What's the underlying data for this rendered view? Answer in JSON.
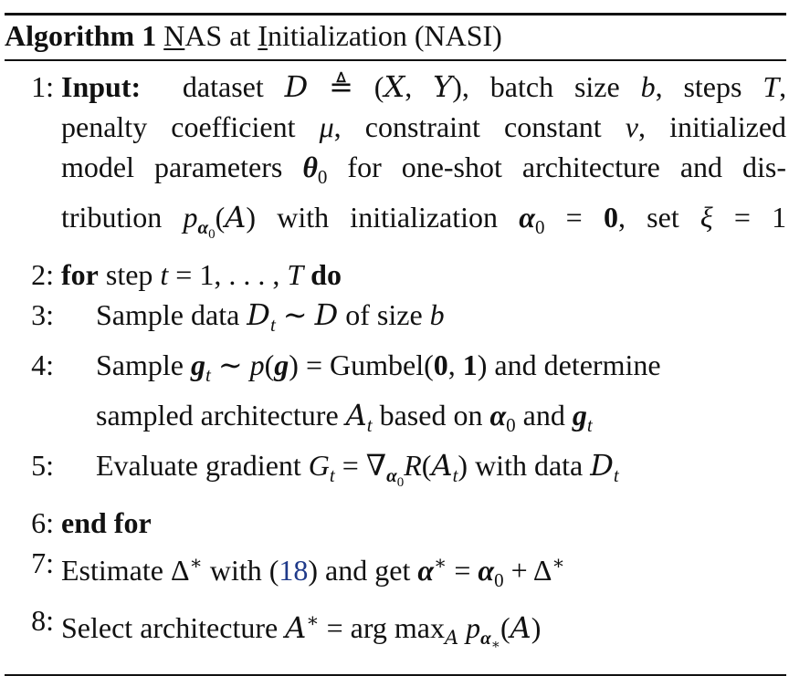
{
  "caption": {
    "label": "Algorithm 1",
    "title_n": "N",
    "title_as": "AS",
    "title_at": " at ",
    "title_i": "I",
    "title_nit": "nitialization",
    "title_abbr": " (NASI)"
  },
  "lines": {
    "l1": {
      "num": "1:",
      "keyword": "Input:",
      "t1": "dataset",
      "t2": "batch size",
      "t3": "steps",
      "t4": "penalty coefficient",
      "t5": "constraint constant",
      "t6": "initialized",
      "t7": "model parameters",
      "t8": "for one-shot architecture and dis-",
      "t9": "tribution",
      "t10": "with initialization",
      "t11": "set"
    },
    "l2": {
      "num": "2:",
      "keyword_for": "for",
      "text": "step",
      "keyword_do": "do"
    },
    "l3": {
      "num": "3:",
      "t1": "Sample data",
      "t2": "of size"
    },
    "l4": {
      "num": "4:",
      "t1": "Sample",
      "t2": "Gumbel",
      "t3": "and determine",
      "t4": "sampled architecture",
      "t5": "based on",
      "t6": "and"
    },
    "l5": {
      "num": "5:",
      "t1": "Evaluate gradient",
      "t2": "with data"
    },
    "l6": {
      "num": "6:",
      "keyword": "end for"
    },
    "l7": {
      "num": "7:",
      "t1": "Estimate",
      "t2": "with",
      "ref": "18",
      "t3": "and get"
    },
    "l8": {
      "num": "8:",
      "t1": "Select architecture",
      "t2": "arg max"
    }
  }
}
